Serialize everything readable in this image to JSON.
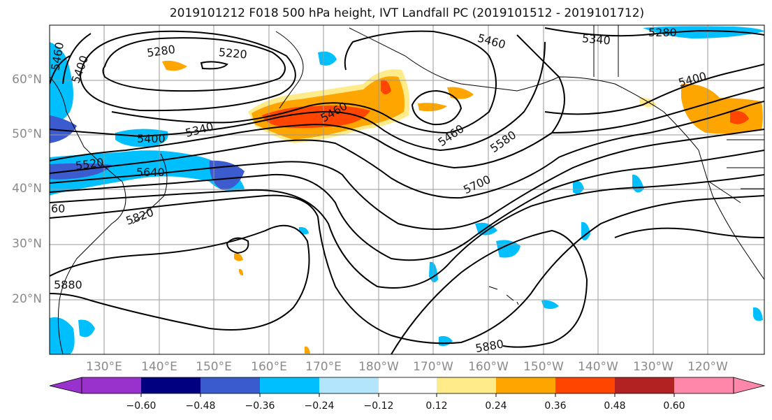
{
  "title": "2019101212 F018 500 hPa height, IVT Landfall PC (2019101512 - 2019101712)",
  "map": {
    "lat_labels": [
      "60°N",
      "50°N",
      "40°N",
      "30°N",
      "20°N"
    ],
    "lon_labels": [
      "130°E",
      "140°E",
      "150°E",
      "160°E",
      "170°E",
      "180°W",
      "170°W",
      "160°W",
      "150°W",
      "140°W",
      "130°W",
      "120°W"
    ],
    "contour_labels": [
      "5280",
      "5220",
      "5460",
      "5340",
      "5280",
      "5400",
      "5460",
      "5340",
      "5460",
      "5580",
      "5400",
      "5520",
      "5640",
      "5700",
      "5820",
      "5880",
      "5880",
      "5460",
      "60",
      "5400"
    ],
    "fill_colors": {
      "strong_negative": "#3b5bcf",
      "negative": "#00bfff",
      "weak_negative": "#b3e5fc",
      "weak_positive": "#ffeb8a",
      "positive": "#ffa500",
      "strong_positive": "#ff4500"
    },
    "contour_color": "#000000",
    "grid_color": "#999999"
  },
  "colorbar": {
    "colors": [
      "#9932cc",
      "#000080",
      "#3a5bcd",
      "#00bfff",
      "#b3e5fc",
      "#ffffff",
      "#ffeb8a",
      "#ffa500",
      "#ff4500",
      "#b22222",
      "#ff88aa"
    ],
    "ticks": [
      "−0.60",
      "−0.48",
      "−0.36",
      "−0.24",
      "−0.12",
      "0.12",
      "0.24",
      "0.36",
      "0.48",
      "0.60"
    ]
  }
}
